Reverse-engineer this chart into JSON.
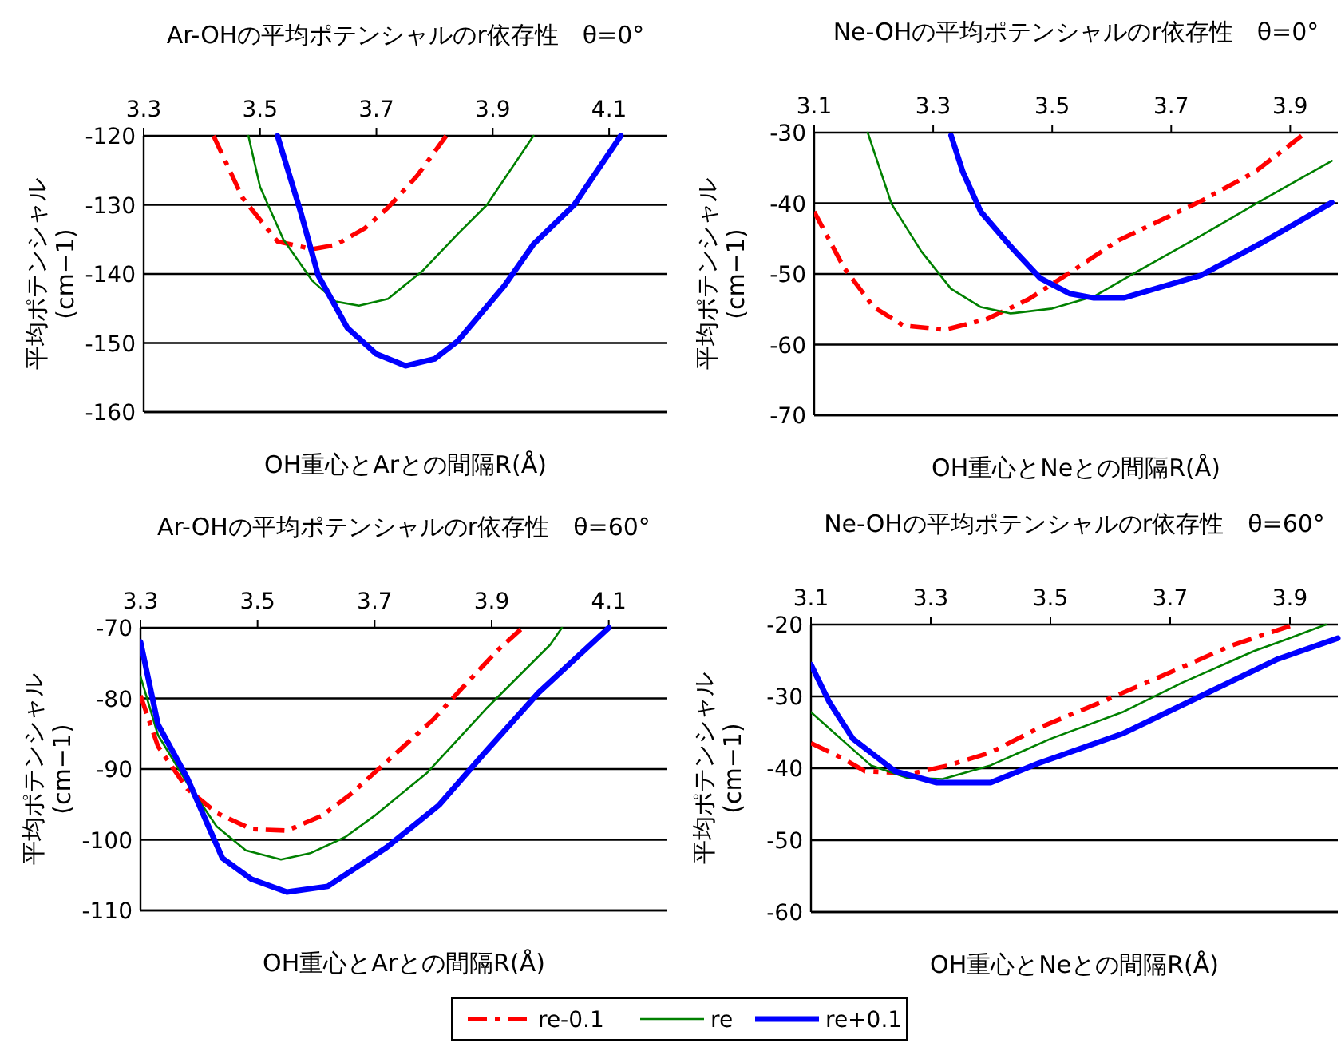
{
  "chart_data": [
    {
      "type": "line",
      "title": "Ar-OHの平均ポテンシャルのr依存性　θ=0°",
      "xlabel": "OH重心とArとの間隔R(Å)",
      "ylabel": "平均ポテンシャル (cm−1)",
      "xlim": [
        3.3,
        4.2
      ],
      "xticks": [
        3.3,
        3.5,
        3.7,
        3.9,
        4.1
      ],
      "ylim": [
        -160,
        -120
      ],
      "yticks": [
        -160,
        -150,
        -140,
        -130,
        -120
      ],
      "grid": "y",
      "legend": "bottom",
      "marker": "none",
      "series": [
        {
          "name": "re-0.1",
          "color": "#ff0000",
          "line_style": "dashed",
          "x": [
            3.42,
            3.47,
            3.53,
            3.59,
            3.63,
            3.68,
            3.72,
            3.77,
            3.82
          ],
          "values": [
            -120,
            -129,
            -135.3,
            -136.4,
            -135.8,
            -133.4,
            -130.4,
            -125.8,
            -120
          ]
        },
        {
          "name": "re",
          "color": "#008000",
          "line_style": "solid",
          "x": [
            3.48,
            3.5,
            3.54,
            3.59,
            3.63,
            3.67,
            3.72,
            3.78,
            3.84,
            3.89,
            3.97
          ],
          "values": [
            -120,
            -127.4,
            -135,
            -141,
            -144,
            -144.6,
            -143.6,
            -139.5,
            -134.2,
            -130,
            -120
          ]
        },
        {
          "name": "re+0.1",
          "color": "#0000ff",
          "line_style": "solid",
          "x": [
            3.53,
            3.57,
            3.6,
            3.65,
            3.7,
            3.75,
            3.8,
            3.84,
            3.92,
            3.97,
            4.04,
            4.12
          ],
          "values": [
            -120,
            -131.1,
            -140.2,
            -147.8,
            -151.6,
            -153.3,
            -152.3,
            -149.7,
            -141.7,
            -135.7,
            -130,
            -120
          ]
        }
      ]
    },
    {
      "type": "line",
      "title": "Ne-OHの平均ポテンシャルのr依存性　θ=0°",
      "xlabel": "OH重心とNeとの間隔R(Å)",
      "ylabel": "平均ポテンシャル (cm−1)",
      "xlim": [
        3.1,
        3.98
      ],
      "xticks": [
        3.1,
        3.3,
        3.5,
        3.7,
        3.9
      ],
      "ylim": [
        -70,
        -30
      ],
      "yticks": [
        -70,
        -60,
        -50,
        -40,
        -30
      ],
      "grid": "y",
      "marker": "none",
      "series": [
        {
          "color": "#ff0000",
          "line_style": "dashed",
          "x": [
            3.1,
            3.15,
            3.2,
            3.25,
            3.32,
            3.39,
            3.46,
            3.53,
            3.61,
            3.75,
            3.84,
            3.92
          ],
          "values": [
            -41.2,
            -49.1,
            -54.7,
            -57.3,
            -57.9,
            -56.4,
            -53.6,
            -49.8,
            -45.3,
            -39.7,
            -35.6,
            -30.4
          ]
        },
        {
          "color": "#008000",
          "line_style": "solid",
          "x": [
            3.19,
            3.23,
            3.28,
            3.33,
            3.38,
            3.43,
            3.5,
            3.57,
            3.64,
            3.75,
            3.85,
            3.97
          ],
          "values": [
            -30,
            -40.1,
            -46.8,
            -52.1,
            -54.7,
            -55.6,
            -54.9,
            -53.2,
            -49.8,
            -44.6,
            -39.7,
            -34
          ]
        },
        {
          "color": "#0000ff",
          "line_style": "solid",
          "x": [
            3.33,
            3.35,
            3.38,
            3.43,
            3.48,
            3.53,
            3.57,
            3.62,
            3.75,
            3.85,
            3.97
          ],
          "values": [
            -30.4,
            -35.6,
            -41.2,
            -46.1,
            -50.6,
            -52.8,
            -53.4,
            -53.4,
            -50.2,
            -45.7,
            -39.9
          ]
        }
      ]
    },
    {
      "type": "line",
      "title": "Ar-OHの平均ポテンシャルのr依存性　θ=60°",
      "xlabel": "OH重心とArとの間隔R(Å)",
      "ylabel": "平均ポテンシャル (cm−1)",
      "xlim": [
        3.3,
        4.2
      ],
      "xticks": [
        3.3,
        3.5,
        3.7,
        3.9,
        4.1
      ],
      "ylim": [
        -110,
        -70
      ],
      "yticks": [
        -110,
        -100,
        -90,
        -80,
        -70
      ],
      "grid": "y",
      "marker": "none",
      "series": [
        {
          "color": "#ff0000",
          "line_style": "dashed",
          "x": [
            3.3,
            3.33,
            3.38,
            3.43,
            3.49,
            3.55,
            3.61,
            3.66,
            3.72,
            3.8,
            3.85,
            3.91,
            3.95
          ],
          "values": [
            -79.6,
            -86.8,
            -92.8,
            -96.2,
            -98.5,
            -98.7,
            -96.6,
            -93.5,
            -89,
            -83,
            -78.5,
            -73.2,
            -70.2
          ]
        },
        {
          "color": "#008000",
          "line_style": "solid",
          "x": [
            3.3,
            3.33,
            3.38,
            3.43,
            3.48,
            3.54,
            3.59,
            3.65,
            3.7,
            3.79,
            3.89,
            4.0,
            4.02
          ],
          "values": [
            -76.9,
            -85.2,
            -92,
            -98.1,
            -101.5,
            -102.8,
            -101.9,
            -99.6,
            -96.6,
            -90.5,
            -81.5,
            -72.4,
            -70
          ]
        },
        {
          "color": "#0000ff",
          "line_style": "solid",
          "x": [
            3.3,
            3.33,
            3.38,
            3.44,
            3.49,
            3.55,
            3.62,
            3.72,
            3.81,
            3.89,
            3.98,
            4.1
          ],
          "values": [
            -72,
            -83.7,
            -91.3,
            -102.6,
            -105.6,
            -107.4,
            -106.6,
            -101.1,
            -95.1,
            -87.5,
            -79.2,
            -70
          ]
        }
      ]
    },
    {
      "type": "line",
      "title": "Ne-OHの平均ポテンシャルのr依存性　θ=60°",
      "xlabel": "OH重心とNeとの間隔R(Å)",
      "ylabel": "平均ポテンシャル (cm−1)",
      "xlim": [
        3.1,
        3.98
      ],
      "xticks": [
        3.1,
        3.3,
        3.5,
        3.7,
        3.9
      ],
      "ylim": [
        -60,
        -20
      ],
      "yticks": [
        -60,
        -50,
        -40,
        -30,
        -20
      ],
      "grid": "y",
      "marker": "none",
      "series": [
        {
          "color": "#ff0000",
          "line_style": "dashed",
          "x": [
            3.1,
            3.15,
            3.19,
            3.27,
            3.33,
            3.4,
            3.48,
            3.59,
            3.71,
            3.8,
            3.9
          ],
          "values": [
            -36.5,
            -38.5,
            -40.4,
            -40.7,
            -39.6,
            -37.8,
            -34.4,
            -30.6,
            -26.3,
            -23,
            -20.2
          ]
        },
        {
          "color": "#008000",
          "line_style": "solid",
          "x": [
            3.1,
            3.15,
            3.2,
            3.26,
            3.32,
            3.4,
            3.5,
            3.62,
            3.72,
            3.84,
            3.89,
            3.96
          ],
          "values": [
            -32.2,
            -35.9,
            -39.6,
            -41.3,
            -41.5,
            -39.6,
            -35.9,
            -32.2,
            -28.1,
            -23.7,
            -22.2,
            -20
          ]
        },
        {
          "color": "#0000ff",
          "line_style": "solid",
          "x": [
            3.1,
            3.13,
            3.17,
            3.24,
            3.31,
            3.4,
            3.48,
            3.62,
            3.75,
            3.88,
            3.98
          ],
          "values": [
            -25.6,
            -30.7,
            -35.9,
            -40.4,
            -42,
            -42,
            -39.3,
            -35.2,
            -30,
            -24.8,
            -21.9
          ]
        }
      ]
    }
  ]
}
